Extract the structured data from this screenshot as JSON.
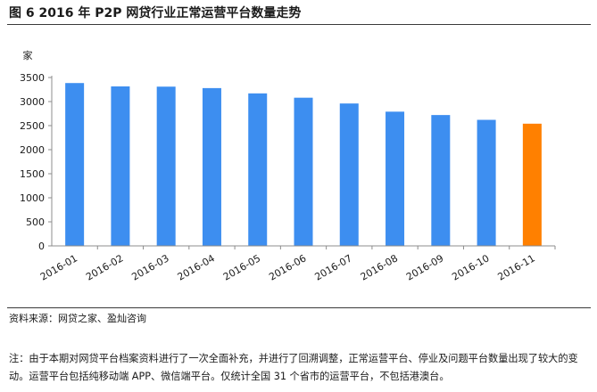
{
  "figure": {
    "title": "图 6   2016 年 P2P 网贷行业正常运营平台数量走势"
  },
  "chart_data": {
    "type": "bar",
    "title": "",
    "xlabel": "",
    "ylabel": "家",
    "ylim": [
      0,
      3500
    ],
    "yticks": [
      0,
      500,
      1000,
      1500,
      2000,
      2500,
      3000,
      3500
    ],
    "grid": false,
    "categories": [
      "2016-01",
      "2016-02",
      "2016-03",
      "2016-04",
      "2016-05",
      "2016-06",
      "2016-07",
      "2016-08",
      "2016-09",
      "2016-10",
      "2016-11"
    ],
    "values": [
      3385,
      3315,
      3310,
      3280,
      3170,
      3080,
      2960,
      2790,
      2720,
      2620,
      2540
    ],
    "colors": {
      "bar": "#3d8ef0",
      "highlight": "#ff8000",
      "highlight_index": 10,
      "axis": "#8c8c8c"
    }
  },
  "source": "资料来源：网贷之家、盈灿咨询",
  "note": "注：由于本期对网贷平台档案资料进行了一次全面补充，并进行了回溯调整，正常运营平台、停业及问题平台数量出现了较大的变动。运营平台包括纯移动端 APP、微信端平台。仅统计全国 31 个省市的运营平台，不包括港澳台。"
}
